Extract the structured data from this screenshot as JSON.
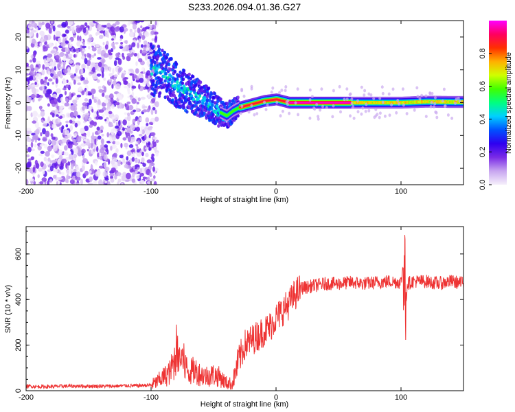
{
  "figure_title": "S233.2026.094.01.36.G27",
  "chart_data": [
    {
      "type": "heatmap",
      "title": "S233.2026.094.01.36.G27",
      "xlabel": "Height of straight line (km)",
      "ylabel": "Frequency (Hz)",
      "xlim": [
        -200,
        150
      ],
      "ylim": [
        -25,
        25
      ],
      "xticks": [
        -200,
        -100,
        0,
        100
      ],
      "yticks": [
        -20,
        -10,
        0,
        10,
        20
      ],
      "colorbar": {
        "label": "Normalized spectral amplitude",
        "range": [
          0,
          1
        ],
        "ticks": [
          0.0,
          0.2,
          0.4,
          0.6,
          0.8
        ],
        "colors": [
          "#f6f0fb",
          "#c8a6f0",
          "#7a2be6",
          "#2f00f0",
          "#0050ff",
          "#00d0ff",
          "#00ff80",
          "#40ff00",
          "#d0ff00",
          "#ffb000",
          "#ff3000",
          "#ff0060",
          "#ff00ff"
        ]
      },
      "ridge": {
        "description": "dominant frequency versus height",
        "x": [
          -95,
          -85,
          -75,
          -65,
          -55,
          -45,
          -40,
          -35,
          -30,
          -20,
          -10,
          0,
          10,
          20,
          40,
          60,
          80,
          100,
          120,
          140,
          150
        ],
        "y": [
          10,
          7,
          4,
          2,
          0,
          -3,
          -4,
          -2.5,
          -1.5,
          -0.5,
          0.5,
          1,
          0,
          0,
          0,
          0,
          0,
          0,
          0.3,
          0.2,
          0.2
        ]
      },
      "noise_region": {
        "x_range": [
          -200,
          -95
        ],
        "y_range": [
          -25,
          25
        ]
      }
    },
    {
      "type": "line",
      "xlabel": "Height of straight line (km)",
      "ylabel": "SNR (10 * v/v)",
      "xlim": [
        -200,
        150
      ],
      "ylim": [
        0,
        720
      ],
      "xticks": [
        -200,
        -100,
        0,
        100
      ],
      "yticks": [
        0,
        200,
        400,
        600
      ],
      "series": [
        {
          "name": "SNR",
          "color": "#ee3333",
          "x": [
            -200,
            -190,
            -180,
            -170,
            -160,
            -150,
            -140,
            -130,
            -120,
            -110,
            -100,
            -95,
            -90,
            -85,
            -80,
            -75,
            -70,
            -65,
            -60,
            -55,
            -50,
            -45,
            -40,
            -35,
            -30,
            -25,
            -20,
            -15,
            -10,
            -5,
            0,
            5,
            10,
            15,
            20,
            30,
            40,
            50,
            60,
            70,
            80,
            90,
            100,
            102,
            103,
            104,
            105,
            110,
            120,
            130,
            140,
            150
          ],
          "y": [
            20,
            18,
            18,
            20,
            20,
            20,
            20,
            20,
            22,
            22,
            25,
            40,
            60,
            80,
            150,
            140,
            80,
            90,
            70,
            65,
            70,
            60,
            35,
            30,
            130,
            200,
            220,
            240,
            260,
            280,
            320,
            350,
            380,
            420,
            450,
            460,
            470,
            470,
            475,
            470,
            475,
            480,
            475,
            560,
            480,
            380,
            470,
            480,
            480,
            470,
            480,
            470
          ]
        }
      ]
    }
  ]
}
